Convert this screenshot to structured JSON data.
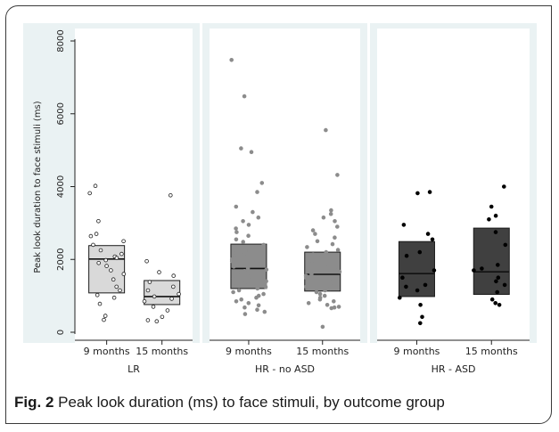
{
  "chart_data": {
    "type": "box",
    "ylabel": "Peak look duration to face stimuli (ms)",
    "ylim": [
      0,
      8000
    ],
    "yticks": [
      0,
      2000,
      4000,
      6000,
      8000
    ],
    "panels": [
      {
        "name": "LR",
        "boxes": [
          {
            "category": "9 months",
            "q1": 1080,
            "median": 2010,
            "q3": 2380,
            "fill": "#d9d9d9",
            "point_color": "#ffffff",
            "points": [
              4020,
              3820,
              3050,
              2700,
              2640,
              2500,
              2400,
              2250,
              2150,
              2080,
              2040,
              1980,
              1900,
              1820,
              1700,
              1600,
              1450,
              1250,
              1150,
              1020,
              950,
              780,
              450,
              340
            ]
          },
          {
            "category": "15 months",
            "q1": 760,
            "median": 980,
            "q3": 1420,
            "fill": "#d9d9d9",
            "point_color": "#ffffff",
            "points": [
              3760,
              1950,
              1650,
              1550,
              1380,
              1250,
              1150,
              1050,
              980,
              920,
              850,
              700,
              600,
              420,
              330,
              300
            ]
          }
        ]
      },
      {
        "name": "HR - no ASD",
        "boxes": [
          {
            "category": "9 months",
            "q1": 1200,
            "median": 1750,
            "q3": 2420,
            "fill": "#8c8c8c",
            "point_color": "#8c8c8c",
            "points": [
              7480,
              6480,
              5050,
              4950,
              4100,
              3850,
              3450,
              3300,
              3150,
              3050,
              2950,
              2850,
              2750,
              2650,
              2550,
              2480,
              2400,
              2330,
              2250,
              2180,
              2120,
              2060,
              2000,
              1950,
              1900,
              1850,
              1800,
              1760,
              1720,
              1680,
              1640,
              1600,
              1560,
              1520,
              1480,
              1440,
              1400,
              1360,
              1320,
              1280,
              1240,
              1200,
              1150,
              1100,
              1050,
              1000,
              950,
              900,
              850,
              800,
              740,
              680,
              620,
              560,
              500
            ]
          },
          {
            "category": "15 months",
            "q1": 1130,
            "median": 1590,
            "q3": 2200,
            "fill": "#8c8c8c",
            "point_color": "#8c8c8c",
            "points": [
              5550,
              4320,
              3350,
              3250,
              3150,
              3050,
              2900,
              2800,
              2700,
              2600,
              2500,
              2420,
              2340,
              2260,
              2200,
              2140,
              2080,
              2020,
              1960,
              1900,
              1840,
              1780,
              1720,
              1660,
              1600,
              1550,
              1500,
              1450,
              1400,
              1350,
              1300,
              1250,
              1200,
              1150,
              1100,
              1050,
              1000,
              950,
              900,
              850,
              800,
              750,
              700,
              680,
              660,
              150
            ]
          }
        ]
      },
      {
        "name": "HR - ASD",
        "boxes": [
          {
            "category": "9 months",
            "q1": 980,
            "median": 1610,
            "q3": 2490,
            "fill": "#404040",
            "point_color": "#000000",
            "points": [
              3850,
              3820,
              2950,
              2700,
              2550,
              2200,
              2100,
              1700,
              1500,
              1300,
              1250,
              1150,
              950,
              750,
              420,
              250
            ]
          },
          {
            "category": "15 months",
            "q1": 1040,
            "median": 1660,
            "q3": 2860,
            "fill": "#404040",
            "point_color": "#000000",
            "points": [
              4000,
              3450,
              3200,
              3100,
              2750,
              2400,
              1850,
              1750,
              1700,
              1500,
              1400,
              1300,
              1100,
              900,
              800,
              750
            ]
          }
        ]
      }
    ]
  },
  "caption": {
    "label": "Fig. 2",
    "text": " Peak look duration (ms) to face stimuli, by outcome group"
  }
}
